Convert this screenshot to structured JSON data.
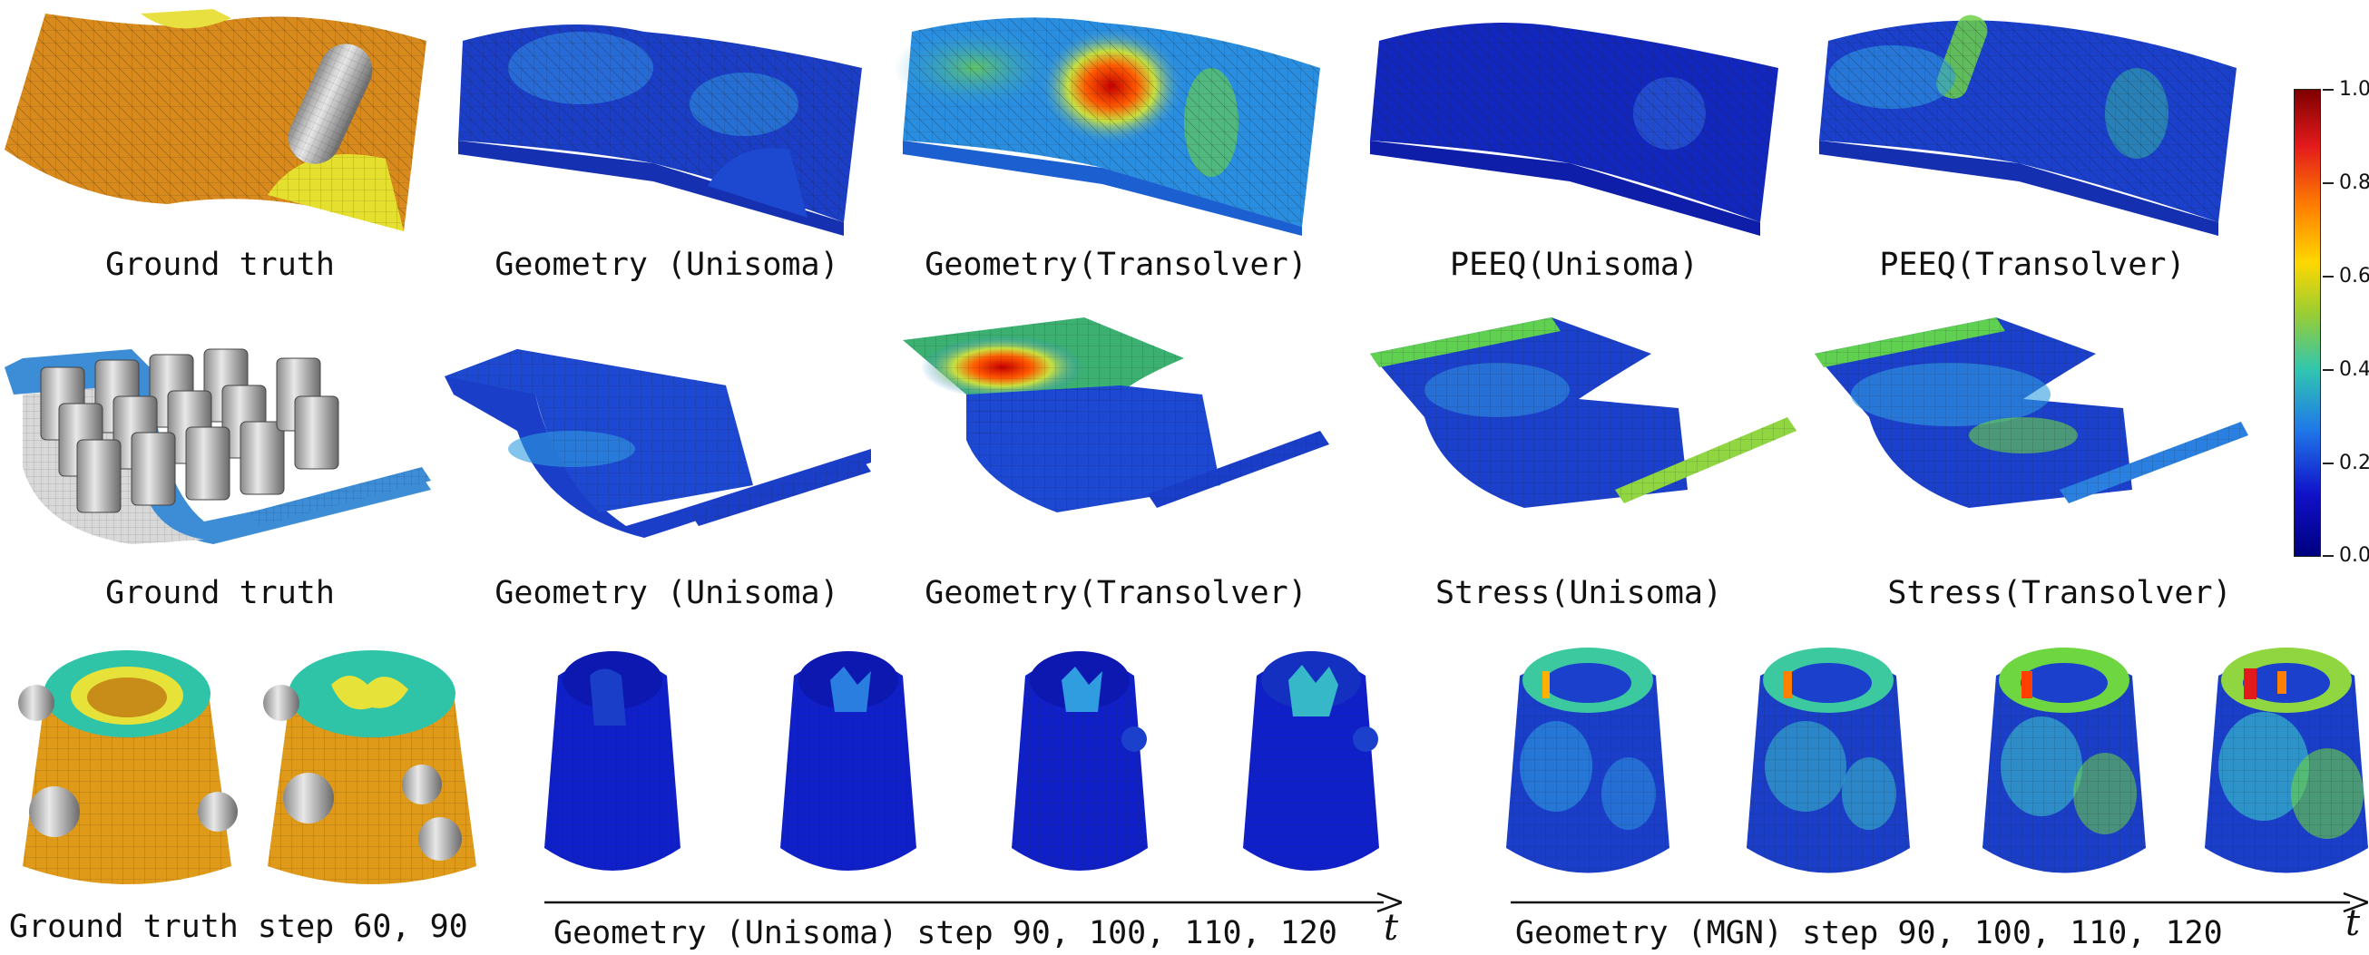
{
  "figure": {
    "row1_captions": [
      "Ground truth",
      "Geometry (Unisoma)",
      "Geometry(Transolver)",
      "PEEQ(Unisoma)",
      "PEEQ(Transolver)"
    ],
    "row2_captions": [
      "Ground truth",
      "Geometry (Unisoma)",
      "Geometry(Transolver)",
      "Stress(Unisoma)",
      "Stress(Transolver)"
    ],
    "row3_captions": [
      "Ground truth step 60, 90",
      "Geometry (Unisoma) step 90, 100, 110, 120",
      "Geometry (MGN) step 90, 100, 110, 120"
    ],
    "time_axis_label": "t",
    "colorbar": {
      "ticks": [
        "1.0",
        "0.8",
        "0.6",
        "0.4",
        "0.2",
        "0.0"
      ],
      "colors": [
        "#7f0000",
        "#e31a1c",
        "#ff7f00",
        "#ffd700",
        "#9acd32",
        "#31c6b0",
        "#1f78e8",
        "#1010c8",
        "#00007f"
      ]
    }
  }
}
